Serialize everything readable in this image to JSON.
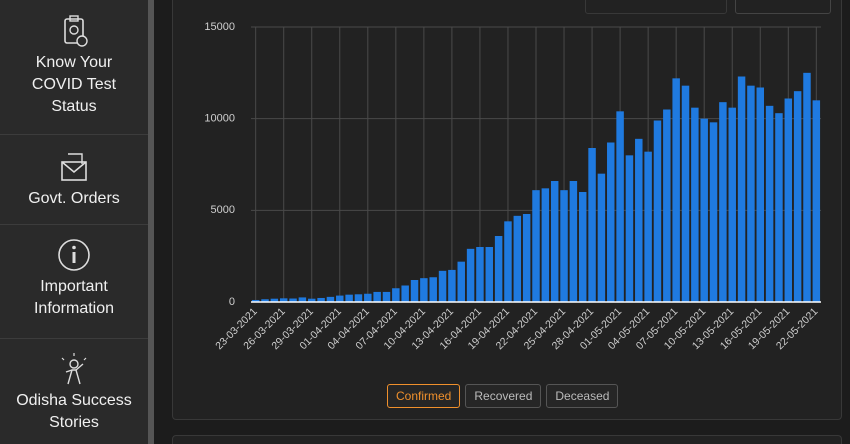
{
  "sidebar": [
    {
      "lines": [
        "Know Your",
        "COVID Test",
        "Status"
      ]
    },
    {
      "lines": [
        "Govt. Orders"
      ]
    },
    {
      "lines": [
        "Important",
        "Information"
      ]
    },
    {
      "lines": [
        "Odisha Success",
        "Stories"
      ]
    }
  ],
  "toggle_buttons": [
    "Confirmed",
    "Recovered",
    "Deceased"
  ],
  "chart_data": {
    "type": "bar",
    "categories": [
      "23-03-2021",
      null,
      null,
      "26-03-2021",
      null,
      null,
      "29-03-2021",
      null,
      null,
      "01-04-2021",
      null,
      null,
      "04-04-2021",
      null,
      null,
      "07-04-2021",
      null,
      null,
      "10-04-2021",
      null,
      null,
      "13-04-2021",
      null,
      null,
      "16-04-2021",
      null,
      null,
      "19-04-2021",
      null,
      null,
      "22-04-2021",
      null,
      null,
      "25-04-2021",
      null,
      null,
      "28-04-2021",
      null,
      null,
      "01-05-2021",
      null,
      null,
      "04-05-2021",
      null,
      null,
      "07-05-2021",
      null,
      null,
      "10-05-2021",
      null,
      null,
      "13-05-2021",
      null,
      null,
      "16-05-2021",
      null,
      null,
      "19-05-2021",
      null,
      null,
      "22-05-2021"
    ],
    "values": [
      110,
      150,
      180,
      200,
      190,
      250,
      180,
      220,
      280,
      350,
      400,
      420,
      450,
      550,
      550,
      750,
      900,
      1200,
      1300,
      1350,
      1700,
      1750,
      2200,
      2900,
      3000,
      3000,
      3600,
      4400,
      4700,
      4800,
      6100,
      6200,
      6600,
      6100,
      6600,
      6000,
      8400,
      7000,
      8700,
      10400,
      8000,
      8900,
      8200,
      9900,
      10500,
      12200,
      11800,
      10600,
      10000,
      9800,
      10900,
      10600,
      12300,
      11800,
      11700,
      10700,
      10300,
      11100,
      11500,
      12500,
      11000
    ],
    "color": "#1f7ae0",
    "ylim": [
      0,
      15000
    ],
    "yticks": [
      0,
      5000,
      10000,
      15000
    ],
    "grid": true
  }
}
